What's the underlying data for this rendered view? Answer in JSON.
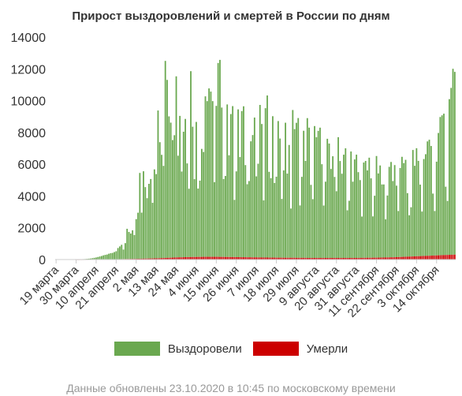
{
  "chart_data": {
    "type": "bar",
    "title": "Прирост выздоровлений и смертей в России по дням",
    "x_tick_labels": [
      "19 марта",
      "30 марта",
      "10 апреля",
      "21 апреля",
      "2 мая",
      "13 мая",
      "24 мая",
      "4 июня",
      "15 июня",
      "26 июня",
      "7 июля",
      "18 июля",
      "29 июля",
      "9 августа",
      "20 августа",
      "31 августа",
      "11 сентября",
      "22 сентября",
      "3 октября",
      "14 октября"
    ],
    "y_ticks": [
      0,
      2000,
      4000,
      6000,
      8000,
      10000,
      12000,
      14000
    ],
    "ylim": [
      0,
      14000
    ],
    "stacked": true,
    "series": [
      {
        "name": "Выздоровели",
        "color": "#6aa84f",
        "values": [
          0,
          0,
          0,
          0,
          0,
          0,
          0,
          0,
          0,
          0,
          0,
          5,
          10,
          15,
          20,
          25,
          30,
          40,
          50,
          60,
          80,
          100,
          120,
          150,
          180,
          210,
          250,
          280,
          300,
          350,
          380,
          400,
          450,
          500,
          700,
          800,
          900,
          600,
          1000,
          1900,
          1700,
          1600,
          1800,
          1500,
          2500,
          2900,
          5400,
          2900,
          5500,
          4500,
          3800,
          4700,
          5000,
          3500,
          5600,
          5300,
          9300,
          7300,
          6500,
          5800,
          12400,
          11200,
          8900,
          8500,
          7400,
          7700,
          11400,
          6400,
          8900,
          5400,
          7900,
          8700,
          5900,
          4300,
          11700,
          8200,
          4900,
          8500,
          4300,
          4800,
          6800,
          6600,
          10100,
          9800,
          10600,
          10400,
          9800,
          4700,
          9500,
          12200,
          12400,
          9400,
          4900,
          5100,
          9600,
          6400,
          9000,
          9500,
          3600,
          5400,
          9300,
          6300,
          9200,
          9500,
          5800,
          4600,
          4800,
          7300,
          7700,
          8800,
          5100,
          5900,
          9600,
          8400,
          3600,
          9400,
          10200,
          5400,
          5000,
          8900,
          4700,
          5100,
          8600,
          7500,
          3700,
          5500,
          8500,
          5300,
          7100,
          3100,
          9300,
          8100,
          8500,
          8800,
          3300,
          5100,
          8000,
          6100,
          8800,
          8200,
          4600,
          3700,
          8300,
          7600,
          8000,
          8200,
          5900,
          3300,
          4800,
          7500,
          7200,
          5600,
          6400,
          5100,
          4200,
          7600,
          6100,
          5300,
          6500,
          6900,
          3000,
          3600,
          6700,
          4800,
          6200,
          6500,
          5400,
          4900,
          2600,
          6000,
          6100,
          5500,
          6300,
          5000,
          2600,
          3900,
          6400,
          5300,
          5800,
          4600,
          4600,
          2400,
          3900,
          5700,
          6000,
          4800,
          5800,
          4500,
          2900,
          5600,
          6300,
          5900,
          6100,
          4000,
          2600,
          3100,
          6700,
          5700,
          6800,
          6000,
          4500,
          2800,
          6100,
          6400,
          7200,
          7300,
          6900,
          3900,
          2800,
          5900,
          7700,
          8700,
          8800,
          8900,
          4300,
          3400,
          9800,
          10500,
          11700,
          11500
        ]
      },
      {
        "name": "Умерли",
        "color": "#cc0000",
        "values": [
          0,
          0,
          0,
          0,
          0,
          0,
          0,
          0,
          0,
          0,
          0,
          1,
          1,
          2,
          2,
          3,
          4,
          4,
          5,
          6,
          7,
          8,
          9,
          10,
          11,
          12,
          13,
          14,
          15,
          16,
          17,
          18,
          20,
          22,
          24,
          26,
          28,
          30,
          32,
          34,
          36,
          38,
          40,
          42,
          44,
          47,
          50,
          53,
          56,
          59,
          62,
          65,
          68,
          71,
          74,
          77,
          80,
          85,
          90,
          95,
          100,
          105,
          110,
          115,
          120,
          125,
          130,
          135,
          140,
          140,
          145,
          150,
          150,
          155,
          155,
          160,
          160,
          160,
          165,
          165,
          165,
          170,
          170,
          170,
          170,
          170,
          170,
          170,
          170,
          170,
          165,
          165,
          165,
          160,
          160,
          160,
          155,
          155,
          155,
          150,
          150,
          150,
          145,
          145,
          145,
          140,
          140,
          140,
          135,
          135,
          135,
          130,
          130,
          130,
          125,
          125,
          125,
          120,
          120,
          120,
          120,
          115,
          115,
          115,
          115,
          110,
          110,
          110,
          110,
          110,
          110,
          110,
          105,
          105,
          105,
          105,
          105,
          105,
          100,
          100,
          100,
          100,
          100,
          100,
          100,
          100,
          100,
          100,
          100,
          100,
          100,
          100,
          100,
          100,
          100,
          100,
          100,
          100,
          100,
          100,
          100,
          100,
          100,
          100,
          100,
          100,
          100,
          100,
          105,
          105,
          105,
          110,
          110,
          110,
          115,
          115,
          115,
          120,
          120,
          125,
          125,
          130,
          130,
          135,
          140,
          140,
          145,
          150,
          155,
          160,
          165,
          170,
          175,
          180,
          185,
          190,
          195,
          200,
          205,
          210,
          215,
          220,
          225,
          230,
          235,
          240,
          245,
          250,
          255,
          260,
          265,
          270,
          275,
          280,
          285,
          290,
          295,
          300,
          305,
          310,
          315,
          320,
          325,
          330,
          335,
          340,
          345,
          350,
          355,
          360,
          365,
          370
        ]
      }
    ],
    "legend_position": "bottom",
    "grid": false
  },
  "footer_note": "Данные обновлены 23.10.2020 в 10:45 по московскому времени"
}
